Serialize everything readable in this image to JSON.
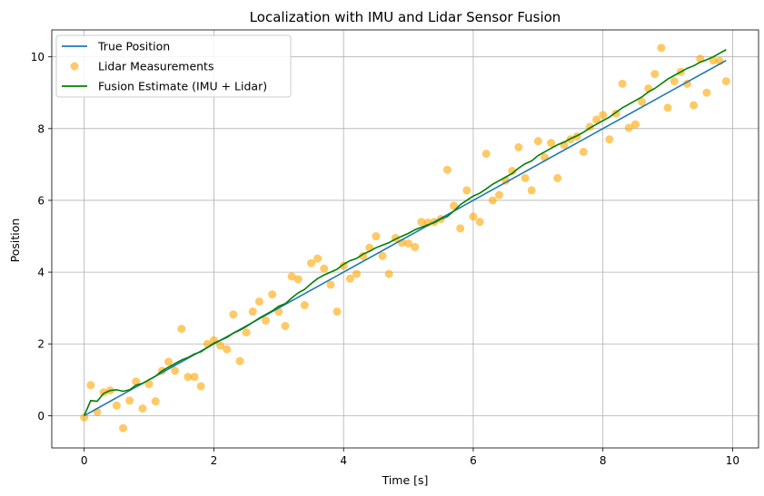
{
  "chart_data": {
    "type": "line",
    "title": "Localization with IMU and Lidar Sensor Fusion",
    "xlabel": "Time [s]",
    "ylabel": "Position",
    "xlim": [
      -0.5,
      10.4
    ],
    "ylim": [
      -0.9,
      10.75
    ],
    "xticks": [
      0,
      2,
      4,
      6,
      8,
      10
    ],
    "yticks": [
      0,
      2,
      4,
      6,
      8,
      10
    ],
    "grid": true,
    "legend_position": "upper-left",
    "series": [
      {
        "name": "True Position",
        "kind": "line",
        "color": "#1f77b4",
        "x": [
          0,
          9.9
        ],
        "y": [
          0,
          9.9
        ]
      },
      {
        "name": "Lidar Measurements",
        "kind": "scatter",
        "color": "#ffa500",
        "opacity": 0.6,
        "x": [
          0.0,
          0.1,
          0.2,
          0.3,
          0.4,
          0.5,
          0.6,
          0.7,
          0.8,
          0.9,
          1.0,
          1.1,
          1.2,
          1.3,
          1.4,
          1.5,
          1.6,
          1.7,
          1.8,
          1.9,
          2.0,
          2.1,
          2.2,
          2.3,
          2.4,
          2.5,
          2.6,
          2.7,
          2.8,
          2.9,
          3.0,
          3.1,
          3.2,
          3.3,
          3.4,
          3.5,
          3.6,
          3.7,
          3.8,
          3.9,
          4.0,
          4.1,
          4.2,
          4.3,
          4.4,
          4.5,
          4.6,
          4.7,
          4.8,
          4.9,
          5.0,
          5.1,
          5.2,
          5.3,
          5.4,
          5.5,
          5.6,
          5.7,
          5.8,
          5.9,
          6.0,
          6.1,
          6.2,
          6.3,
          6.4,
          6.5,
          6.6,
          6.7,
          6.8,
          6.9,
          7.0,
          7.1,
          7.2,
          7.3,
          7.4,
          7.5,
          7.6,
          7.7,
          7.8,
          7.9,
          8.0,
          8.1,
          8.2,
          8.3,
          8.4,
          8.5,
          8.6,
          8.7,
          8.8,
          8.9,
          9.0,
          9.1,
          9.2,
          9.3,
          9.4,
          9.5,
          9.6,
          9.7,
          9.8,
          9.9
        ],
        "y": [
          -0.05,
          0.85,
          0.1,
          0.65,
          0.7,
          0.28,
          -0.35,
          0.42,
          0.95,
          0.2,
          0.88,
          0.4,
          1.25,
          1.5,
          1.25,
          2.42,
          1.08,
          1.08,
          0.82,
          2.0,
          2.1,
          1.95,
          1.85,
          2.82,
          1.52,
          2.32,
          2.9,
          3.18,
          2.65,
          3.38,
          2.9,
          2.5,
          3.88,
          3.8,
          3.08,
          4.25,
          4.38,
          4.1,
          3.65,
          2.9,
          4.18,
          3.82,
          3.95,
          4.45,
          4.68,
          5.0,
          4.45,
          3.95,
          4.95,
          4.82,
          4.8,
          4.7,
          5.4,
          5.38,
          5.4,
          5.48,
          6.85,
          5.85,
          5.22,
          6.28,
          5.55,
          5.4,
          7.3,
          6.0,
          6.15,
          6.55,
          6.82,
          7.48,
          6.62,
          6.28,
          7.65,
          7.2,
          7.6,
          6.62,
          7.55,
          7.7,
          7.78,
          7.35,
          8.05,
          8.25,
          8.38,
          7.7,
          8.42,
          9.25,
          8.02,
          8.12,
          8.75,
          9.12,
          9.52,
          10.25,
          8.58,
          9.32,
          9.58,
          9.25,
          8.65,
          9.95,
          9.0,
          9.9,
          9.88,
          9.32
        ]
      },
      {
        "name": "Fusion Estimate (IMU + Lidar)",
        "kind": "line",
        "color": "#008000",
        "x": [
          0.0,
          0.1,
          0.2,
          0.3,
          0.4,
          0.5,
          0.6,
          0.7,
          0.8,
          0.9,
          1.0,
          1.1,
          1.2,
          1.3,
          1.4,
          1.5,
          1.6,
          1.7,
          1.8,
          1.9,
          2.0,
          2.1,
          2.2,
          2.3,
          2.4,
          2.5,
          2.6,
          2.7,
          2.8,
          2.9,
          3.0,
          3.1,
          3.2,
          3.3,
          3.4,
          3.5,
          3.6,
          3.7,
          3.8,
          3.9,
          4.0,
          4.1,
          4.2,
          4.3,
          4.4,
          4.5,
          4.6,
          4.7,
          4.8,
          4.9,
          5.0,
          5.1,
          5.2,
          5.3,
          5.4,
          5.5,
          5.6,
          5.7,
          5.8,
          5.9,
          6.0,
          6.1,
          6.2,
          6.3,
          6.4,
          6.5,
          6.6,
          6.7,
          6.8,
          6.9,
          7.0,
          7.1,
          7.2,
          7.3,
          7.4,
          7.5,
          7.6,
          7.7,
          7.8,
          7.9,
          8.0,
          8.1,
          8.2,
          8.3,
          8.4,
          8.5,
          8.6,
          8.7,
          8.8,
          8.9,
          9.0,
          9.1,
          9.2,
          9.3,
          9.4,
          9.5,
          9.6,
          9.7,
          9.8,
          9.9
        ],
        "y": [
          0.0,
          0.42,
          0.4,
          0.62,
          0.7,
          0.72,
          0.68,
          0.72,
          0.85,
          0.9,
          1.0,
          1.1,
          1.25,
          1.35,
          1.45,
          1.55,
          1.62,
          1.72,
          1.78,
          1.9,
          2.02,
          2.1,
          2.18,
          2.3,
          2.38,
          2.48,
          2.6,
          2.72,
          2.82,
          2.92,
          3.05,
          3.12,
          3.28,
          3.42,
          3.52,
          3.68,
          3.82,
          3.92,
          4.0,
          4.08,
          4.22,
          4.32,
          4.38,
          4.5,
          4.58,
          4.68,
          4.75,
          4.82,
          4.92,
          5.0,
          5.08,
          5.18,
          5.25,
          5.32,
          5.38,
          5.48,
          5.55,
          5.7,
          5.88,
          6.0,
          6.12,
          6.2,
          6.32,
          6.45,
          6.55,
          6.65,
          6.75,
          6.9,
          7.02,
          7.1,
          7.25,
          7.35,
          7.45,
          7.55,
          7.62,
          7.72,
          7.8,
          7.9,
          8.02,
          8.12,
          8.22,
          8.32,
          8.45,
          8.58,
          8.68,
          8.78,
          8.88,
          9.02,
          9.12,
          9.25,
          9.38,
          9.48,
          9.58,
          9.68,
          9.75,
          9.85,
          9.92,
          10.0,
          10.1,
          10.2
        ]
      }
    ]
  }
}
